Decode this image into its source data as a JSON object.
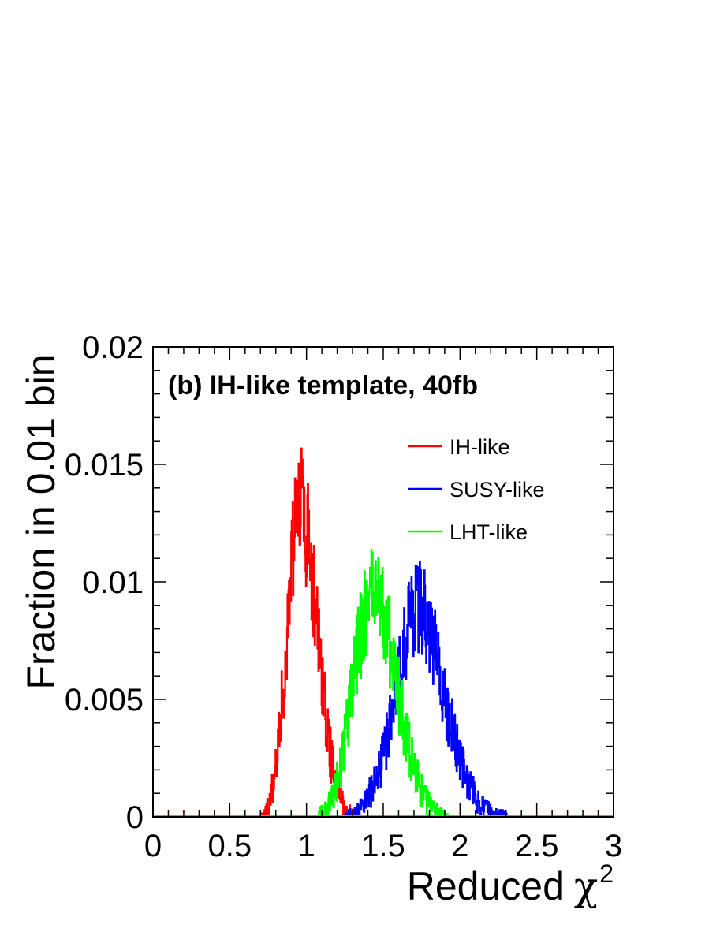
{
  "chart_data": {
    "type": "line",
    "title": "(b) IH-like template, 40fb",
    "xlabel": "Reduced",
    "xlabel_symbol": "χ",
    "xlabel_superscript": "2",
    "ylabel": "Fraction in 0.01 bin",
    "xlim": [
      0,
      3
    ],
    "ylim": [
      0,
      0.02
    ],
    "x_ticks": [
      "0",
      "0.5",
      "1",
      "1.5",
      "2",
      "2.5",
      "3"
    ],
    "y_ticks": [
      "0",
      "0.005",
      "0.01",
      "0.015",
      "0.02"
    ],
    "grid": false,
    "legend_position": "top-right",
    "bin_width": 0.01,
    "colors": {
      "IH-like": "#ff0000",
      "SUSY-like": "#0000ff",
      "LHT-like": "#00ff00"
    },
    "series": [
      {
        "name": "IH-like",
        "color": "#ff0000",
        "x": [
          0.7,
          0.72,
          0.74,
          0.76,
          0.78,
          0.8,
          0.82,
          0.84,
          0.86,
          0.88,
          0.9,
          0.92,
          0.94,
          0.96,
          0.98,
          1.0,
          1.02,
          1.04,
          1.06,
          1.08,
          1.1,
          1.12,
          1.14,
          1.16,
          1.18,
          1.2,
          1.22,
          1.24,
          1.26,
          1.28,
          1.3,
          1.32,
          1.34
        ],
        "values": [
          0.0,
          0.0001,
          0.0003,
          0.0007,
          0.0013,
          0.0022,
          0.0034,
          0.0049,
          0.0066,
          0.0085,
          0.0104,
          0.0118,
          0.0126,
          0.0133,
          0.0129,
          0.0122,
          0.0114,
          0.0101,
          0.0087,
          0.0074,
          0.0059,
          0.0045,
          0.0034,
          0.0025,
          0.0019,
          0.0014,
          0.0009,
          0.0005,
          0.0003,
          0.0002,
          0.0001,
          0.0,
          0.0
        ]
      },
      {
        "name": "SUSY-like",
        "color": "#0000ff",
        "x": [
          1.24,
          1.28,
          1.32,
          1.36,
          1.4,
          1.44,
          1.48,
          1.52,
          1.56,
          1.6,
          1.64,
          1.68,
          1.72,
          1.76,
          1.8,
          1.84,
          1.88,
          1.92,
          1.96,
          2.0,
          2.04,
          2.08,
          2.12,
          2.16,
          2.2,
          2.24,
          2.28,
          2.32,
          2.36
        ],
        "values": [
          0.0,
          0.0001,
          0.0002,
          0.0004,
          0.0008,
          0.0014,
          0.0022,
          0.0033,
          0.0046,
          0.0059,
          0.0073,
          0.0085,
          0.0091,
          0.0089,
          0.0081,
          0.007,
          0.0058,
          0.0045,
          0.0034,
          0.0025,
          0.0017,
          0.0011,
          0.0007,
          0.0004,
          0.0002,
          0.0001,
          0.0001,
          0.0,
          0.0
        ]
      },
      {
        "name": "LHT-like",
        "color": "#00ff00",
        "x": [
          1.06,
          1.1,
          1.14,
          1.18,
          1.22,
          1.26,
          1.3,
          1.34,
          1.38,
          1.42,
          1.46,
          1.5,
          1.54,
          1.58,
          1.62,
          1.66,
          1.7,
          1.74,
          1.78,
          1.82,
          1.86,
          1.9,
          1.94,
          1.98
        ],
        "values": [
          0.0,
          0.0002,
          0.0004,
          0.001,
          0.0021,
          0.0037,
          0.0056,
          0.0073,
          0.0087,
          0.0094,
          0.0093,
          0.0087,
          0.0075,
          0.006,
          0.0045,
          0.0031,
          0.002,
          0.0012,
          0.0007,
          0.0004,
          0.0002,
          0.0001,
          0.0,
          0.0
        ]
      }
    ]
  }
}
